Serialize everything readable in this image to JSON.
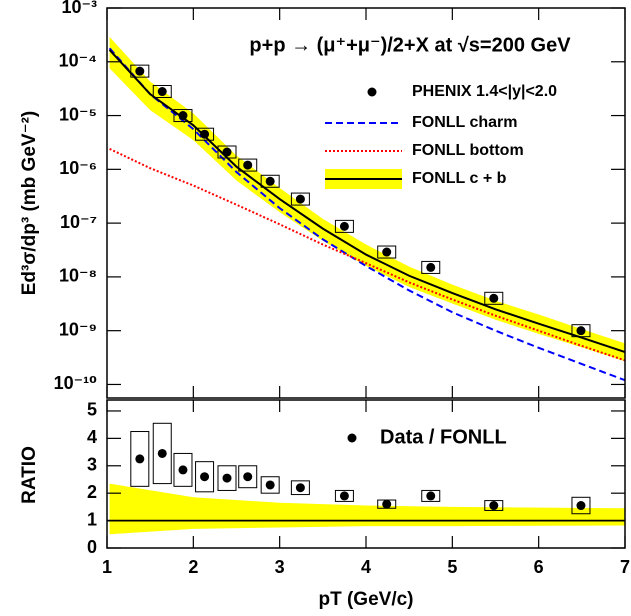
{
  "chart_data": [
    {
      "type": "line",
      "title": "p+p → (μ⁺+μ⁻)/2+X at √s=200 GeV",
      "y_label": "Ed³σ/dp³ (mb GeV⁻²)",
      "ylog": true,
      "xlim": [
        1,
        7
      ],
      "ylim": [
        5.6e-11,
        0.001
      ],
      "xticks": [
        1,
        2,
        3,
        4,
        5,
        6,
        7
      ],
      "yticks": [
        {
          "value": 0.001,
          "label": "10⁻³"
        },
        {
          "value": 0.0001,
          "label": "10⁻⁴"
        },
        {
          "value": 1e-05,
          "label": "10⁻⁵"
        },
        {
          "value": 1e-06,
          "label": "10⁻⁶"
        },
        {
          "value": 1e-07,
          "label": "10⁻⁷"
        },
        {
          "value": 1e-08,
          "label": "10⁻⁸"
        },
        {
          "value": 1e-09,
          "label": "10⁻⁹"
        },
        {
          "value": 1e-10,
          "label": "10⁻¹⁰"
        }
      ],
      "points": {
        "name": "PHENIX 1.4<|y|<2.0",
        "color": "#000000",
        "x": [
          1.38,
          1.64,
          1.88,
          2.13,
          2.39,
          2.63,
          2.89,
          3.24,
          3.75,
          4.24,
          4.75,
          5.48,
          6.49
        ],
        "values": [
          6.7e-05,
          2.8e-05,
          1e-05,
          4.5e-06,
          2.1e-06,
          1.2e-06,
          6e-07,
          2.8e-07,
          8.7e-08,
          2.9e-08,
          1.5e-08,
          4e-09,
          1e-09
        ]
      },
      "x": [
        1.03,
        1.5,
        2,
        2.5,
        3,
        3.5,
        4,
        4.5,
        5,
        5.5,
        6,
        6.5,
        7
      ],
      "series": [
        {
          "name": "FONLL charm",
          "color": "#0000ff",
          "style": "dashed",
          "values": [
            0.000178,
            2.5e-05,
            5.6e-06,
            8.9e-07,
            1.9e-07,
            5e-08,
            1.6e-08,
            5.6e-09,
            2.2e-09,
            1e-09,
            4.8e-10,
            2.4e-10,
            1.2e-10
          ]
        },
        {
          "name": "FONLL bottom",
          "color": "#ff0000",
          "style": "dotted",
          "values": [
            2.4e-06,
            1.05e-06,
            5e-07,
            2.2e-07,
            9.5e-08,
            4e-08,
            1.8e-08,
            7.9e-09,
            3.8e-09,
            1.9e-09,
            1e-09,
            5.2e-10,
            2.8e-10
          ]
        },
        {
          "name": "FONLL c + b",
          "color": "#000000",
          "style": "solid",
          "band_color": "#ffff00",
          "values": [
            0.000166,
            2.5e-05,
            6.6e-06,
            1.12e-06,
            2.8e-07,
            7.9e-08,
            2.6e-08,
            1.05e-08,
            5e-09,
            2.5e-09,
            1.35e-09,
            7.4e-10,
            4e-10
          ],
          "band_upper": [
            0.00029,
            4.3e-05,
            1.1e-05,
            1.8e-06,
            4.5e-07,
            1.2e-07,
            4e-08,
            1.55e-08,
            7.2e-09,
            3.6e-09,
            2e-09,
            1.07e-09,
            5.8e-10
          ],
          "band_lower": [
            7.6e-05,
            1.26e-05,
            3.5e-06,
            6.2e-07,
            1.6e-07,
            4.7e-08,
            1.6e-08,
            6.5e-09,
            3.2e-09,
            1.6e-09,
            8.7e-10,
            4.9e-10,
            2.7e-10
          ]
        }
      ]
    },
    {
      "type": "line",
      "y_label": "RATIO",
      "x_label": "pT (GeV/c)",
      "xlim": [
        1,
        7
      ],
      "ylim": [
        0,
        5.4
      ],
      "xticks": [
        1,
        2,
        3,
        4,
        5,
        6,
        7
      ],
      "yticks": [
        0,
        1,
        2,
        3,
        4,
        5
      ],
      "reference_line": 1,
      "points": {
        "name": "Data / FONLL",
        "color": "#000000",
        "x": [
          1.38,
          1.64,
          1.88,
          2.13,
          2.39,
          2.63,
          2.89,
          3.24,
          3.75,
          4.24,
          4.75,
          5.48,
          6.49
        ],
        "values": [
          3.25,
          3.45,
          2.85,
          2.6,
          2.55,
          2.6,
          2.3,
          2.2,
          1.9,
          1.6,
          1.9,
          1.55,
          1.55
        ],
        "errors": [
          1.0,
          1.1,
          0.6,
          0.55,
          0.45,
          0.4,
          0.3,
          0.25,
          0.2,
          0.15,
          0.2,
          0.18,
          0.3
        ]
      },
      "band": {
        "color": "#ffff00",
        "x": [
          1.03,
          2,
          3,
          4,
          5,
          7
        ],
        "upper": [
          2.35,
          1.85,
          1.65,
          1.55,
          1.5,
          1.45
        ],
        "lower": [
          0.5,
          0.7,
          0.75,
          0.8,
          0.8,
          0.82
        ]
      }
    }
  ]
}
